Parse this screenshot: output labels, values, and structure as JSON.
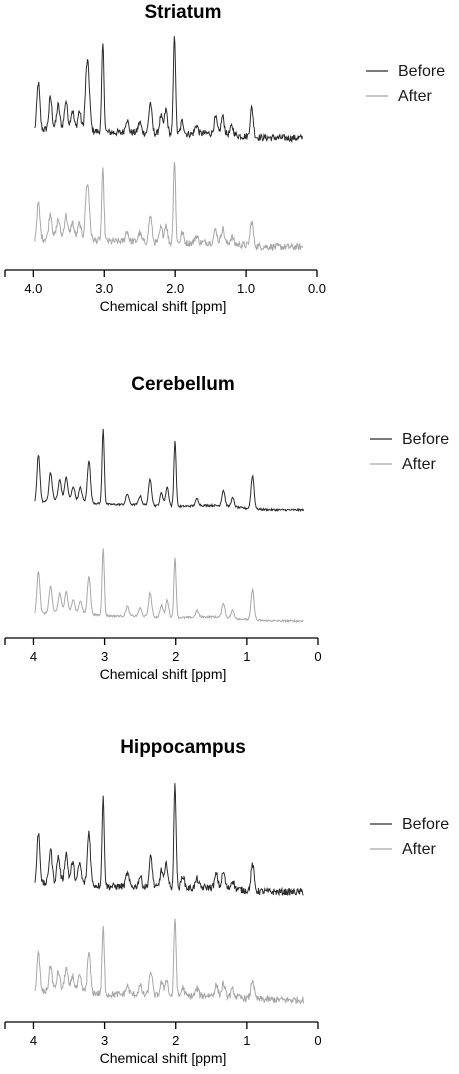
{
  "chart_data": [
    {
      "type": "line",
      "title": "Striatum",
      "xlabel": "Chemical shift [ppm]",
      "ylabel": "",
      "xlim": [
        4.4,
        0.0
      ],
      "x_reversed": true,
      "xticks": [
        4.0,
        3.0,
        2.0,
        1.0,
        0.0
      ],
      "xtick_labels": [
        "4.0",
        "3.0",
        "2.0",
        "1.0",
        "0.0"
      ],
      "legend": {
        "placement": "right",
        "entries": [
          "Before",
          "After"
        ]
      },
      "series": [
        {
          "name": "Before",
          "color": "#2b2b2b",
          "peaks": [
            [
              3.93,
              0.55
            ],
            [
              3.76,
              0.35
            ],
            [
              3.65,
              0.25
            ],
            [
              3.54,
              0.3
            ],
            [
              3.45,
              0.2
            ],
            [
              3.35,
              0.2
            ],
            [
              3.25,
              0.55
            ],
            [
              3.22,
              0.45
            ],
            [
              3.02,
              1.0
            ],
            [
              2.68,
              0.15
            ],
            [
              2.5,
              0.12
            ],
            [
              2.35,
              0.35
            ],
            [
              2.2,
              0.2
            ],
            [
              2.13,
              0.28
            ],
            [
              2.01,
              1.15
            ],
            [
              1.9,
              0.15
            ],
            [
              1.7,
              0.1
            ],
            [
              1.43,
              0.18
            ],
            [
              1.33,
              0.2
            ],
            [
              1.2,
              0.1
            ],
            [
              0.92,
              0.33
            ]
          ]
        },
        {
          "name": "After",
          "color": "#a8a8a8",
          "peaks": [
            [
              3.93,
              0.42
            ],
            [
              3.76,
              0.28
            ],
            [
              3.65,
              0.2
            ],
            [
              3.54,
              0.24
            ],
            [
              3.45,
              0.16
            ],
            [
              3.35,
              0.16
            ],
            [
              3.25,
              0.45
            ],
            [
              3.22,
              0.36
            ],
            [
              3.02,
              0.8
            ],
            [
              2.68,
              0.12
            ],
            [
              2.5,
              0.1
            ],
            [
              2.35,
              0.3
            ],
            [
              2.2,
              0.17
            ],
            [
              2.13,
              0.22
            ],
            [
              2.01,
              0.95
            ],
            [
              1.9,
              0.12
            ],
            [
              1.7,
              0.08
            ],
            [
              1.43,
              0.15
            ],
            [
              1.33,
              0.17
            ],
            [
              1.2,
              0.08
            ],
            [
              0.92,
              0.28
            ]
          ]
        }
      ]
    },
    {
      "type": "line",
      "title": "Cerebellum",
      "xlabel": "Chemical shift [ppm]",
      "ylabel": "",
      "xlim": [
        4.4,
        0.0
      ],
      "x_reversed": true,
      "xticks": [
        4,
        3,
        2,
        1,
        0
      ],
      "xtick_labels": [
        "4",
        "3",
        "2",
        "1",
        "0"
      ],
      "legend": {
        "placement": "right",
        "entries": [
          "Before",
          "After"
        ]
      },
      "series": [
        {
          "name": "Before",
          "color": "#2b2b2b",
          "peaks": [
            [
              3.93,
              0.55
            ],
            [
              3.76,
              0.32
            ],
            [
              3.63,
              0.22
            ],
            [
              3.54,
              0.25
            ],
            [
              3.44,
              0.15
            ],
            [
              3.34,
              0.15
            ],
            [
              3.22,
              0.48
            ],
            [
              3.02,
              0.85
            ],
            [
              2.68,
              0.12
            ],
            [
              2.5,
              0.1
            ],
            [
              2.36,
              0.3
            ],
            [
              2.2,
              0.15
            ],
            [
              2.12,
              0.22
            ],
            [
              2.01,
              0.75
            ],
            [
              1.7,
              0.08
            ],
            [
              1.33,
              0.18
            ],
            [
              1.2,
              0.1
            ],
            [
              0.92,
              0.38
            ]
          ]
        },
        {
          "name": "After",
          "color": "#a8a8a8",
          "peaks": [
            [
              3.93,
              0.55
            ],
            [
              3.76,
              0.32
            ],
            [
              3.63,
              0.22
            ],
            [
              3.54,
              0.25
            ],
            [
              3.44,
              0.15
            ],
            [
              3.34,
              0.15
            ],
            [
              3.22,
              0.48
            ],
            [
              3.02,
              0.85
            ],
            [
              2.68,
              0.12
            ],
            [
              2.5,
              0.1
            ],
            [
              2.36,
              0.3
            ],
            [
              2.2,
              0.15
            ],
            [
              2.12,
              0.22
            ],
            [
              2.01,
              0.75
            ],
            [
              1.7,
              0.08
            ],
            [
              1.33,
              0.18
            ],
            [
              1.2,
              0.1
            ],
            [
              0.92,
              0.38
            ]
          ]
        }
      ]
    },
    {
      "type": "line",
      "title": "Hippocampus",
      "xlabel": "Chemical shift [ppm]",
      "ylabel": "",
      "xlim": [
        4.4,
        0.0
      ],
      "x_reversed": true,
      "xticks": [
        4,
        3,
        2,
        1,
        0
      ],
      "xtick_labels": [
        "4",
        "3",
        "2",
        "1",
        "0"
      ],
      "legend": {
        "placement": "right",
        "entries": [
          "Before",
          "After"
        ]
      },
      "series": [
        {
          "name": "Before",
          "color": "#2b2b2b",
          "peaks": [
            [
              3.93,
              0.6
            ],
            [
              3.76,
              0.38
            ],
            [
              3.65,
              0.28
            ],
            [
              3.54,
              0.32
            ],
            [
              3.45,
              0.22
            ],
            [
              3.35,
              0.22
            ],
            [
              3.22,
              0.6
            ],
            [
              3.02,
              1.0
            ],
            [
              2.68,
              0.15
            ],
            [
              2.5,
              0.12
            ],
            [
              2.35,
              0.35
            ],
            [
              2.2,
              0.2
            ],
            [
              2.13,
              0.28
            ],
            [
              2.01,
              1.2
            ],
            [
              1.9,
              0.15
            ],
            [
              1.7,
              0.1
            ],
            [
              1.43,
              0.15
            ],
            [
              1.33,
              0.18
            ],
            [
              1.2,
              0.1
            ],
            [
              0.92,
              0.3
            ]
          ]
        },
        {
          "name": "After",
          "color": "#a8a8a8",
          "peaks": [
            [
              3.93,
              0.45
            ],
            [
              3.76,
              0.28
            ],
            [
              3.65,
              0.2
            ],
            [
              3.54,
              0.24
            ],
            [
              3.45,
              0.16
            ],
            [
              3.35,
              0.16
            ],
            [
              3.22,
              0.45
            ],
            [
              3.02,
              0.75
            ],
            [
              2.68,
              0.1
            ],
            [
              2.5,
              0.1
            ],
            [
              2.35,
              0.28
            ],
            [
              2.2,
              0.15
            ],
            [
              2.13,
              0.2
            ],
            [
              2.01,
              0.9
            ],
            [
              1.9,
              0.1
            ],
            [
              1.7,
              0.08
            ],
            [
              1.43,
              0.12
            ],
            [
              1.33,
              0.14
            ],
            [
              1.2,
              0.08
            ],
            [
              0.92,
              0.22
            ]
          ]
        }
      ]
    }
  ]
}
